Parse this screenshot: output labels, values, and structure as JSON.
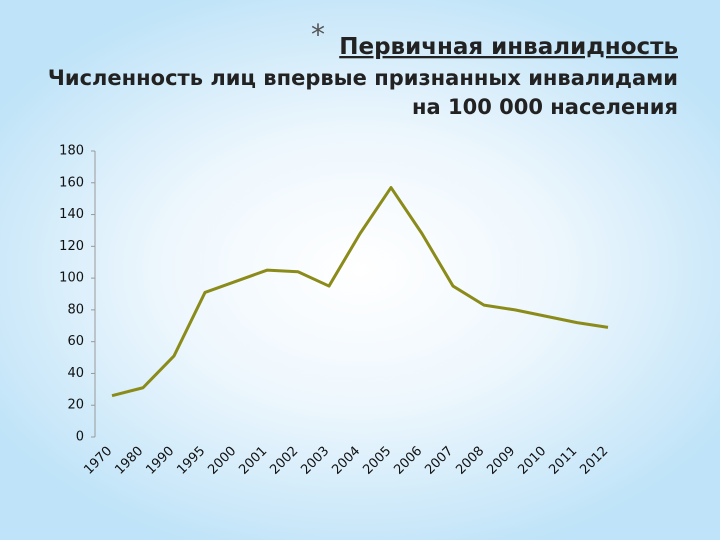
{
  "chart_data": {
    "type": "line",
    "bullet": "*",
    "title": "Первичная инвалидность",
    "subtitle": [
      "Численность лиц впервые признанных инвалидами",
      "на 100 000 населения"
    ],
    "categories": [
      "1970",
      "1980",
      "1990",
      "1995",
      "2000",
      "2001",
      "2002",
      "2003",
      "2004",
      "2005",
      "2006",
      "2007",
      "2008",
      "2009",
      "2010",
      "2011",
      "2012"
    ],
    "values": [
      26,
      31,
      51,
      91,
      98,
      105,
      104,
      95,
      128,
      157,
      128,
      95,
      83,
      80,
      76,
      72,
      69
    ],
    "color": "#8b8b1a",
    "ylim": [
      0,
      180
    ],
    "yticks": [
      0,
      20,
      40,
      60,
      80,
      100,
      120,
      140,
      160,
      180
    ]
  }
}
